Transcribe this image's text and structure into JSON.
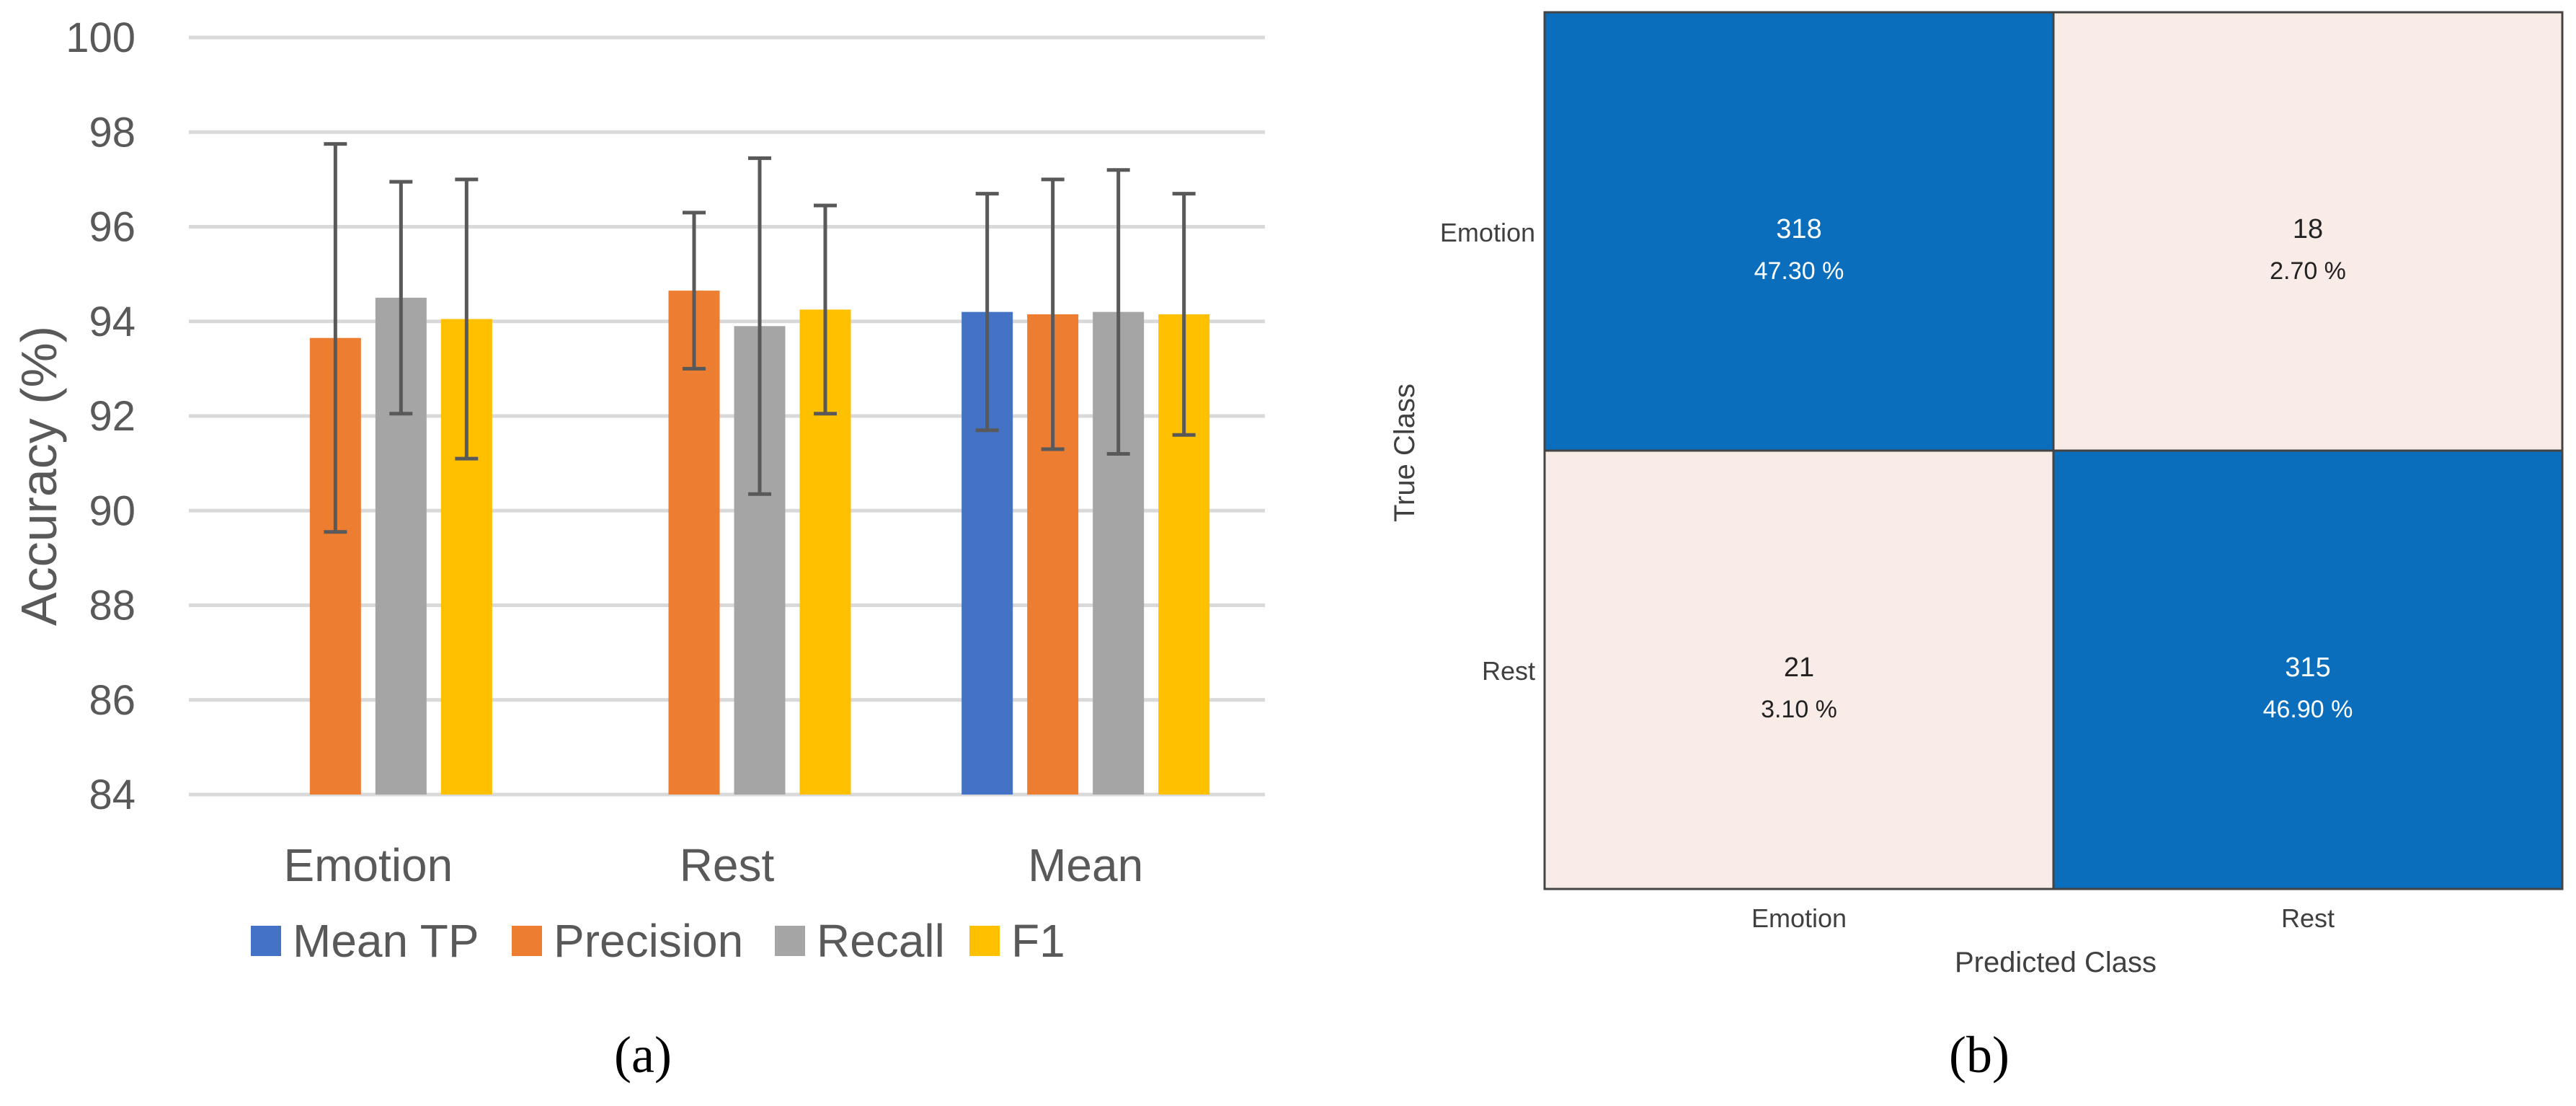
{
  "chart_data": [
    {
      "type": "bar",
      "panel_label": "(a)",
      "ylabel": "Accuracy (%)",
      "xlabel": "",
      "ylim": [
        84,
        100
      ],
      "yticks": [
        84,
        86,
        88,
        90,
        92,
        94,
        96,
        98,
        100
      ],
      "grid": true,
      "legend_position": "bottom",
      "categories": [
        "Emotion",
        "Rest",
        "Mean"
      ],
      "series": [
        {
          "name": "Mean TP",
          "color": "#4472c4",
          "values": [
            null,
            null,
            94.2
          ],
          "errors": [
            null,
            null,
            2.5
          ]
        },
        {
          "name": "Precision",
          "color": "#ed7d31",
          "values": [
            93.65,
            94.65,
            94.15
          ],
          "errors": [
            4.1,
            1.65,
            2.85
          ]
        },
        {
          "name": "Recall",
          "color": "#a5a5a5",
          "values": [
            94.5,
            93.9,
            94.2
          ],
          "errors": [
            2.45,
            3.55,
            3.0
          ]
        },
        {
          "name": "F1",
          "color": "#ffc000",
          "values": [
            94.05,
            94.25,
            94.15
          ],
          "errors": [
            2.95,
            2.2,
            2.55
          ]
        }
      ]
    },
    {
      "type": "heatmap",
      "panel_label": "(b)",
      "xlabel": "Predicted Class",
      "ylabel": "True Class",
      "x_categories": [
        "Emotion",
        "Rest"
      ],
      "y_categories": [
        "Emotion",
        "Rest"
      ],
      "cells": [
        [
          {
            "count": "318",
            "percent": "47.30 %"
          },
          {
            "count": "18",
            "percent": "2.70 %"
          }
        ],
        [
          {
            "count": "21",
            "percent": "3.10 %"
          },
          {
            "count": "315",
            "percent": "46.90 %"
          }
        ]
      ],
      "colors": {
        "high": "#0a6ebd",
        "low": "#f9ebe6",
        "high_text": "#ffffff",
        "low_text": "#222222"
      }
    }
  ]
}
